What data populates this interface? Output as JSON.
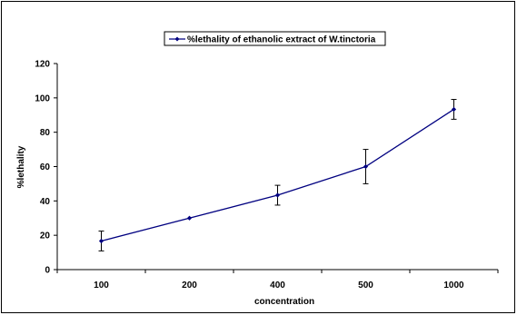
{
  "chart_data": {
    "type": "line",
    "categories": [
      "100",
      "200",
      "400",
      "500",
      "1000"
    ],
    "series": [
      {
        "name": "%lethality of ethanolic extract of W.tinctoria",
        "values": [
          16.67,
          30,
          43.33,
          60,
          93.33
        ],
        "errors": [
          5.77,
          0,
          5.77,
          10,
          5.77
        ]
      }
    ],
    "xlabel": "concentration",
    "ylabel": "%lethality",
    "ylim": [
      0,
      120
    ],
    "yticks": [
      "0",
      "20",
      "40",
      "60",
      "80",
      "100",
      "120"
    ],
    "grid": false,
    "legend_position": "top-center",
    "colors": {
      "series": "#000080",
      "error_bar": "#000000",
      "axis": "#000000"
    }
  }
}
